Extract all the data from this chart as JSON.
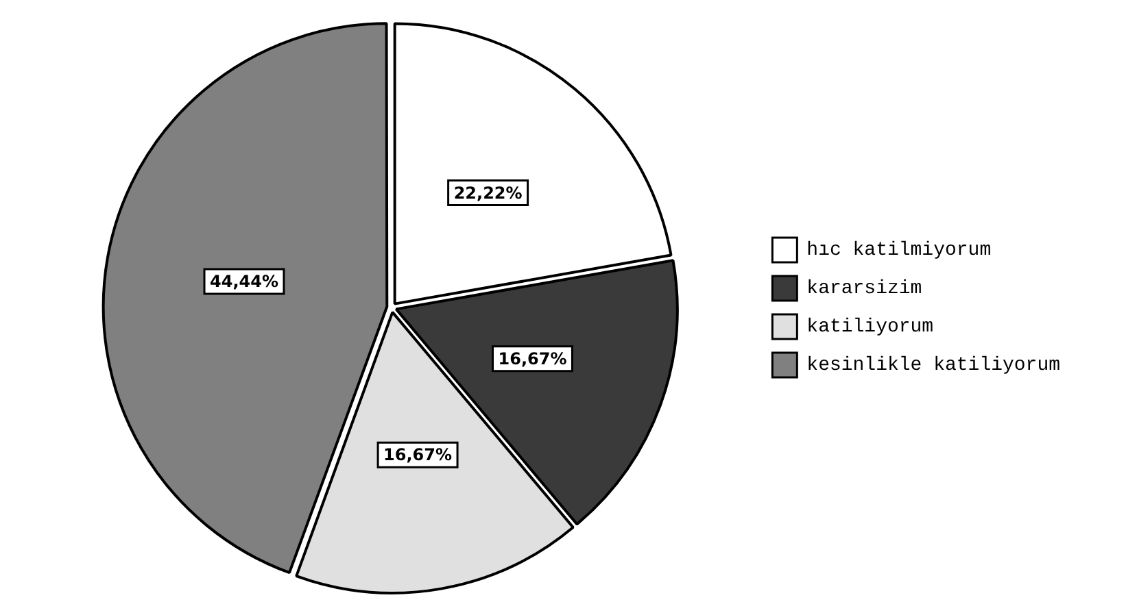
{
  "chart_data": {
    "type": "pie",
    "categories": [
      "hıc katilmiyorum",
      "kararsizim",
      "katiliyorum",
      "kesinlikle katiliyorum"
    ],
    "values": [
      22.22,
      16.67,
      16.67,
      44.44
    ],
    "colors": [
      "#ffffff",
      "#3a3a3a",
      "#e0e0e0",
      "#808080"
    ],
    "value_labels": [
      "22,22%",
      "16,67%",
      "16,67%",
      "44,44%"
    ],
    "legend": "right"
  }
}
